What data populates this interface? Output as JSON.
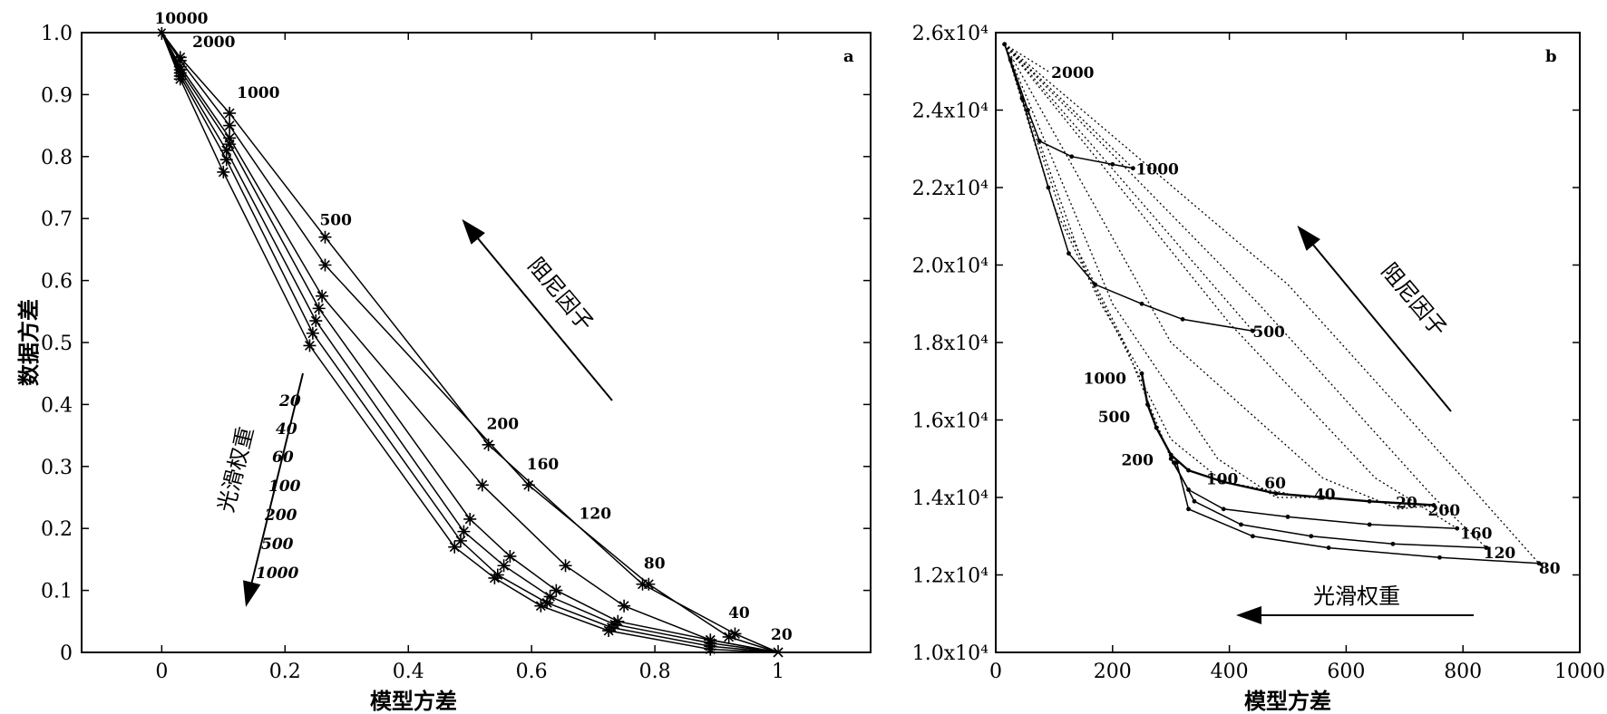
{
  "chart_data": [
    {
      "type": "line",
      "panel_label": "a",
      "xlabel": "模型方差",
      "ylabel": "数据方差",
      "xlim": [
        -0.13,
        1.15
      ],
      "ylim": [
        0,
        1.0
      ],
      "xticks": [
        0,
        0.2,
        0.4,
        0.6,
        0.8,
        1
      ],
      "xtick_labels": [
        "0",
        "0.2",
        "0.4",
        "0.6",
        "0.8",
        "1"
      ],
      "yticks": [
        0,
        0.1,
        0.2,
        0.3,
        0.4,
        0.5,
        0.6,
        0.7,
        0.8,
        0.9,
        1.0
      ],
      "ytick_labels": [
        "0",
        "0.1",
        "0.2",
        "0.3",
        "0.4",
        "0.5",
        "0.6",
        "0.7",
        "0.8",
        "0.9",
        "1.0"
      ],
      "grid": false,
      "series": [
        {
          "name": "20",
          "x": [
            0,
            0.03,
            0.11,
            0.265,
            0.53,
            0.78,
            0.93,
            1
          ],
          "y": [
            1.0,
            0.96,
            0.87,
            0.67,
            0.335,
            0.11,
            0.03,
            0
          ]
        },
        {
          "name": "40",
          "x": [
            0,
            0.03,
            0.11,
            0.265,
            0.595,
            0.79,
            0.92,
            1
          ],
          "y": [
            1.0,
            0.955,
            0.85,
            0.625,
            0.27,
            0.11,
            0.025,
            0
          ]
        },
        {
          "name": "60",
          "x": [
            0,
            0.03,
            0.11,
            0.26,
            0.52,
            0.655,
            0.75,
            0.89,
            1
          ],
          "y": [
            1.0,
            0.945,
            0.83,
            0.575,
            0.27,
            0.14,
            0.075,
            0.02,
            0
          ]
        },
        {
          "name": "100",
          "x": [
            0,
            0.03,
            0.11,
            0.255,
            0.5,
            0.565,
            0.64,
            0.74,
            0.89,
            1
          ],
          "y": [
            1.0,
            0.94,
            0.82,
            0.555,
            0.215,
            0.155,
            0.1,
            0.05,
            0.02,
            0
          ]
        },
        {
          "name": "200",
          "x": [
            0,
            0.03,
            0.105,
            0.25,
            0.49,
            0.555,
            0.63,
            0.735,
            0.89,
            1
          ],
          "y": [
            1.0,
            0.935,
            0.81,
            0.535,
            0.195,
            0.14,
            0.09,
            0.045,
            0.015,
            0
          ]
        },
        {
          "name": "500",
          "x": [
            0,
            0.03,
            0.105,
            0.245,
            0.485,
            0.545,
            0.625,
            0.73,
            0.89,
            1
          ],
          "y": [
            1.0,
            0.93,
            0.795,
            0.515,
            0.18,
            0.125,
            0.08,
            0.04,
            0.01,
            0
          ]
        },
        {
          "name": "1000",
          "x": [
            0,
            0.03,
            0.1,
            0.24,
            0.475,
            0.54,
            0.615,
            0.725,
            0.89,
            1
          ],
          "y": [
            1.0,
            0.925,
            0.775,
            0.495,
            0.17,
            0.12,
            0.075,
            0.035,
            0.005,
            0
          ]
        }
      ],
      "damping_labels": [
        {
          "text": "10000",
          "x": 0.0,
          "y": 1.0
        },
        {
          "text": "2000",
          "x": 0.035,
          "y": 0.965
        },
        {
          "text": "1000",
          "x": 0.11,
          "y": 0.88
        },
        {
          "text": "500",
          "x": 0.265,
          "y": 0.675
        },
        {
          "text": "200",
          "x": 0.53,
          "y": 0.34
        },
        {
          "text": "160",
          "x": 0.595,
          "y": 0.275
        },
        {
          "text": "120",
          "x": 0.68,
          "y": 0.195
        },
        {
          "text": "80",
          "x": 0.785,
          "y": 0.115
        },
        {
          "text": "40",
          "x": 0.925,
          "y": 0.035
        },
        {
          "text": "20",
          "x": 1.0,
          "y": 0.0
        }
      ],
      "weight_labels": [
        "20",
        "40",
        "60",
        "100",
        "200",
        "500",
        "1000"
      ],
      "damping_arrow_label": "阻尼因子",
      "smoothing_arrow_label": "光滑权重"
    },
    {
      "type": "line",
      "panel_label": "b",
      "xlabel": "模型方差",
      "ylabel": "",
      "xlim": [
        0,
        1000
      ],
      "ylim": [
        10000,
        26000
      ],
      "xticks": [
        0,
        200,
        400,
        600,
        800,
        1000
      ],
      "xtick_labels": [
        "0",
        "200",
        "400",
        "600",
        "800",
        "1000"
      ],
      "yticks": [
        10000,
        12000,
        14000,
        16000,
        18000,
        20000,
        22000,
        24000,
        26000
      ],
      "ytick_labels": [
        "1.0x10⁴",
        "1.2x10⁴",
        "1.4x10⁴",
        "1.6x10⁴",
        "1.8x10⁴",
        "2.0x10⁴",
        "2.2x10⁴",
        "2.4x10⁴",
        "2.6x10⁴"
      ],
      "grid": false,
      "series": [
        {
          "name": "1000",
          "x": [
            15,
            25,
            55,
            75,
            130,
            200,
            235
          ],
          "y": [
            25700,
            25300,
            24000,
            23200,
            22800,
            22600,
            22500
          ]
        },
        {
          "name": "500",
          "x": [
            15,
            45,
            90,
            125,
            170,
            250,
            320,
            440
          ],
          "y": [
            25700,
            24300,
            22000,
            20300,
            19500,
            19000,
            18600,
            18300
          ]
        },
        {
          "name": "200",
          "x": [
            250,
            260,
            275,
            300,
            330,
            390,
            480,
            560,
            640,
            750
          ],
          "y": [
            17200,
            16400,
            15800,
            15100,
            14700,
            14400,
            14100,
            14000,
            13900,
            13800
          ]
        },
        {
          "name": "100",
          "x": [
            300,
            330,
            390,
            500,
            640,
            790
          ],
          "y": [
            15000,
            14200,
            13700,
            13500,
            13300,
            13200
          ]
        },
        {
          "name": "60",
          "x": [
            305,
            340,
            420,
            540,
            680,
            840
          ],
          "y": [
            14900,
            13900,
            13300,
            13000,
            12800,
            12700
          ]
        },
        {
          "name": "40",
          "x": [
            310,
            330,
            440,
            570,
            760,
            930
          ],
          "y": [
            14900,
            13700,
            13000,
            12700,
            12450,
            12300
          ]
        }
      ],
      "damping_curves": [
        {
          "name": "2000",
          "x": [
            15,
            90
          ],
          "y": [
            25700,
            25000
          ]
        },
        {
          "name": "1000",
          "x": [
            15,
            235
          ],
          "y": [
            25700,
            22500
          ]
        },
        {
          "name": "500",
          "x": [
            15,
            440
          ],
          "y": [
            25700,
            18300
          ]
        },
        {
          "name": "200",
          "x": [
            15,
            100,
            180,
            250
          ],
          "y": [
            25700,
            21500,
            19000,
            17200
          ]
        },
        {
          "name": "100",
          "x": [
            15,
            120,
            220,
            300
          ],
          "y": [
            25700,
            21000,
            18000,
            15000
          ]
        },
        {
          "name": "60",
          "x": [
            15,
            150,
            300,
            390,
            500
          ],
          "y": [
            25700,
            20000,
            15500,
            14400,
            14100
          ]
        },
        {
          "name": "40",
          "x": [
            15,
            200,
            380,
            480,
            560
          ],
          "y": [
            25700,
            19000,
            15000,
            14000,
            14000
          ]
        },
        {
          "name": "20",
          "x": [
            15,
            300,
            560,
            690,
            750
          ],
          "y": [
            25700,
            18000,
            14500,
            13700,
            13800
          ]
        },
        {
          "name": "160",
          "x": [
            15,
            400,
            650,
            790
          ],
          "y": [
            25700,
            18500,
            14500,
            13200
          ]
        },
        {
          "name": "120",
          "x": [
            15,
            450,
            750,
            840
          ],
          "y": [
            25700,
            19000,
            14000,
            12700
          ]
        },
        {
          "name": "80",
          "x": [
            15,
            500,
            800,
            930
          ],
          "y": [
            25700,
            19500,
            14500,
            12300
          ]
        }
      ],
      "point_labels": [
        {
          "text": "2000",
          "x": 95,
          "y": 25000
        },
        {
          "text": "1000",
          "x": 240,
          "y": 22500
        },
        {
          "text": "500",
          "x": 440,
          "y": 18300
        },
        {
          "text": "1000",
          "x": 150,
          "y": 17100
        },
        {
          "text": "500",
          "x": 175,
          "y": 16100
        },
        {
          "text": "200",
          "x": 215,
          "y": 15000
        },
        {
          "text": "100",
          "x": 360,
          "y": 14500
        },
        {
          "text": "60",
          "x": 460,
          "y": 14400
        },
        {
          "text": "40",
          "x": 545,
          "y": 14100
        },
        {
          "text": "20",
          "x": 685,
          "y": 13900
        },
        {
          "text": "200",
          "x": 740,
          "y": 13700
        },
        {
          "text": "160",
          "x": 795,
          "y": 13100
        },
        {
          "text": "120",
          "x": 835,
          "y": 12600
        },
        {
          "text": "80",
          "x": 930,
          "y": 12200
        }
      ],
      "damping_arrow_label": "阻尼因子",
      "smoothing_arrow_label": "光滑权重"
    }
  ]
}
